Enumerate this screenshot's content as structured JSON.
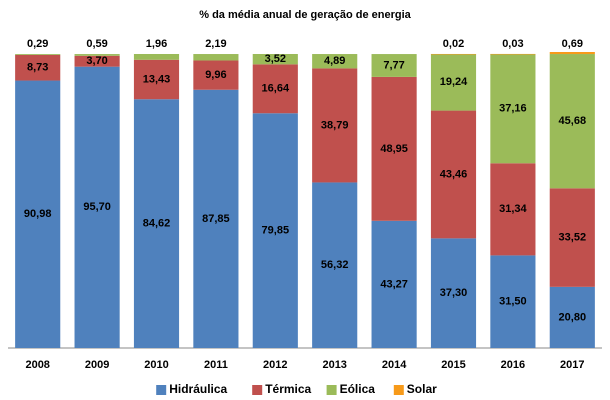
{
  "chart_data": {
    "type": "stacked_bar",
    "title": "% da média anual de geração de energia",
    "categories": [
      "2008",
      "2009",
      "2010",
      "2011",
      "2012",
      "2013",
      "2014",
      "2015",
      "2016",
      "2017"
    ],
    "series": [
      {
        "name": "Hidráulica",
        "color": "#4f81bd",
        "values": [
          90.98,
          95.7,
          84.62,
          87.85,
          79.85,
          56.32,
          43.27,
          37.3,
          31.5,
          20.8
        ],
        "value_labels": [
          "90,98",
          "95,70",
          "84,62",
          "87,85",
          "79,85",
          "56,32",
          "43,27",
          "37,30",
          "31,50",
          "20,80"
        ]
      },
      {
        "name": "Térmica",
        "color": "#c0504d",
        "values": [
          8.73,
          3.7,
          13.43,
          9.96,
          16.64,
          38.79,
          48.95,
          43.46,
          31.34,
          33.52
        ],
        "value_labels": [
          "8,73",
          "3,70",
          "13,43",
          "9,96",
          "16,64",
          "38,79",
          "48,95",
          "43,46",
          "31,34",
          "33,52"
        ]
      },
      {
        "name": "Eólica",
        "color": "#9bbb59",
        "values": [
          0.29,
          0.59,
          1.96,
          2.19,
          3.52,
          4.89,
          7.77,
          19.24,
          37.16,
          45.68
        ],
        "value_labels": [
          "0,29",
          "0,59",
          "1,96",
          "2,19",
          "3,52",
          "4,89",
          "7,77",
          "19,24",
          "37,16",
          "45,68"
        ]
      },
      {
        "name": "Solar",
        "color": "#f79a1a",
        "values": [
          null,
          null,
          null,
          null,
          null,
          null,
          null,
          0.02,
          0.03,
          0.69
        ],
        "value_labels": [
          null,
          null,
          null,
          null,
          null,
          null,
          null,
          "0,02",
          "0,03",
          "0,69"
        ]
      }
    ]
  }
}
